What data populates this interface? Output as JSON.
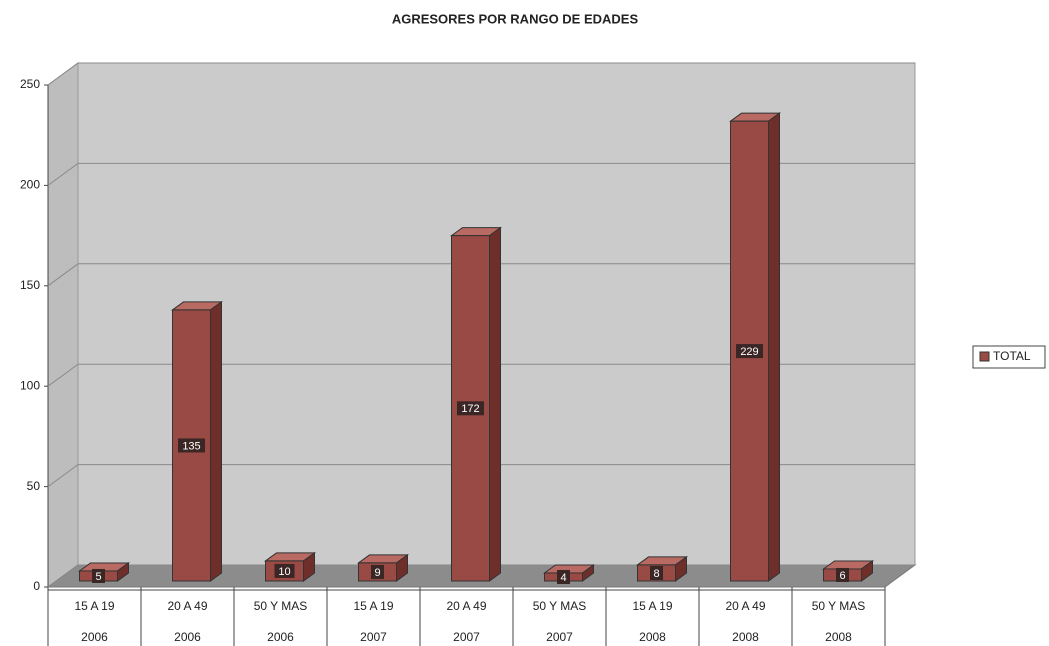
{
  "chart_data": {
    "type": "bar3d",
    "title": "AGRESORES POR RANGO DE EDADES",
    "categories": [
      "15 A 19",
      "20 A 49",
      "50 Y MAS",
      "15 A 19",
      "20 A 49",
      "50 Y MAS",
      "15 A 19",
      "20 A 49",
      "50 Y MAS"
    ],
    "years": [
      "2006",
      "2006",
      "2006",
      "2007",
      "2007",
      "2007",
      "2008",
      "2008",
      "2008"
    ],
    "series": [
      {
        "name": "TOTAL",
        "color": "#9a4a44",
        "values": [
          5,
          135,
          10,
          9,
          172,
          4,
          8,
          229,
          6
        ]
      }
    ],
    "ylim": [
      0,
      250
    ],
    "yticks": [
      0,
      50,
      100,
      150,
      200,
      250
    ],
    "grid": true,
    "legend": "right"
  }
}
